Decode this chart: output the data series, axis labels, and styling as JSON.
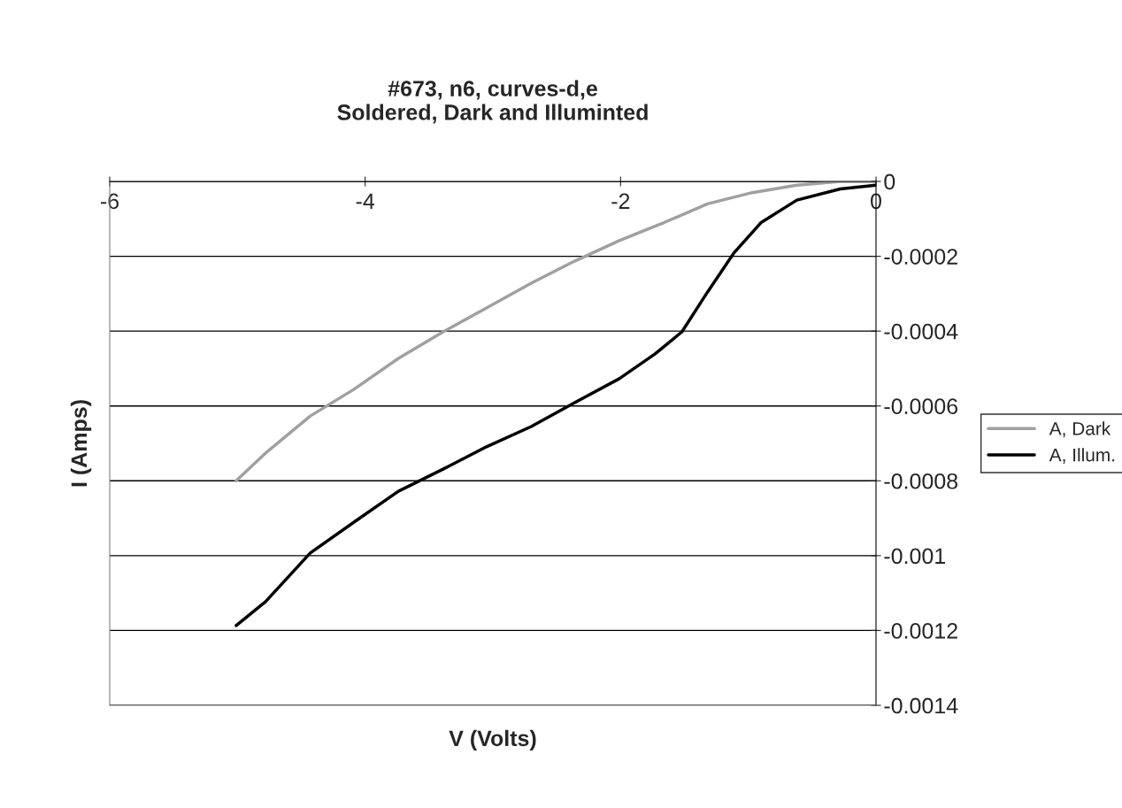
{
  "chart_data": {
    "type": "line",
    "title": "#673, n6, curves-d,e\nSoldered, Dark and Illuminted",
    "xlabel": "V (Volts)",
    "ylabel": "I (Amps)",
    "xlim": [
      -6,
      0
    ],
    "xticks": [
      -6,
      -4,
      -2,
      0
    ],
    "ylim": [
      -0.0014,
      0
    ],
    "yticks": [
      0,
      -0.0002,
      -0.0004,
      -0.0006,
      -0.0008,
      -0.001,
      -0.0012,
      -0.0014
    ],
    "grid": "y",
    "legend": "right",
    "marker": "none",
    "line_style": "solid",
    "series": [
      {
        "name": "A, Dark",
        "color": "#a0a0a0",
        "x": [
          -5.01,
          -4.78,
          -4.43,
          -4.09,
          -3.74,
          -3.39,
          -3.05,
          -2.7,
          -2.36,
          -2.01,
          -1.66,
          -1.32,
          -0.97,
          -0.62,
          -0.28,
          0
        ],
        "values": [
          -0.0008,
          -0.000726,
          -0.000627,
          -0.000556,
          -0.000473,
          -0.000402,
          -0.000338,
          -0.000272,
          -0.000213,
          -0.000158,
          -0.00011,
          -6e-05,
          -3e-05,
          -1e-05,
          0,
          0
        ]
      },
      {
        "name": "A, Illum.",
        "color": "#000000",
        "x": [
          -5.01,
          -4.78,
          -4.43,
          -4.09,
          -3.74,
          -3.39,
          -3.05,
          -2.7,
          -2.36,
          -2.01,
          -1.73,
          -1.52,
          -1.32,
          -1.11,
          -0.9,
          -0.62,
          -0.28,
          0
        ],
        "values": [
          -0.001187,
          -0.001123,
          -0.000993,
          -0.000911,
          -0.000828,
          -0.000769,
          -0.000709,
          -0.000655,
          -0.000591,
          -0.000527,
          -0.000461,
          -0.000402,
          -0.000296,
          -0.00019,
          -0.00011,
          -5e-05,
          -2e-05,
          -1e-05
        ]
      }
    ]
  }
}
